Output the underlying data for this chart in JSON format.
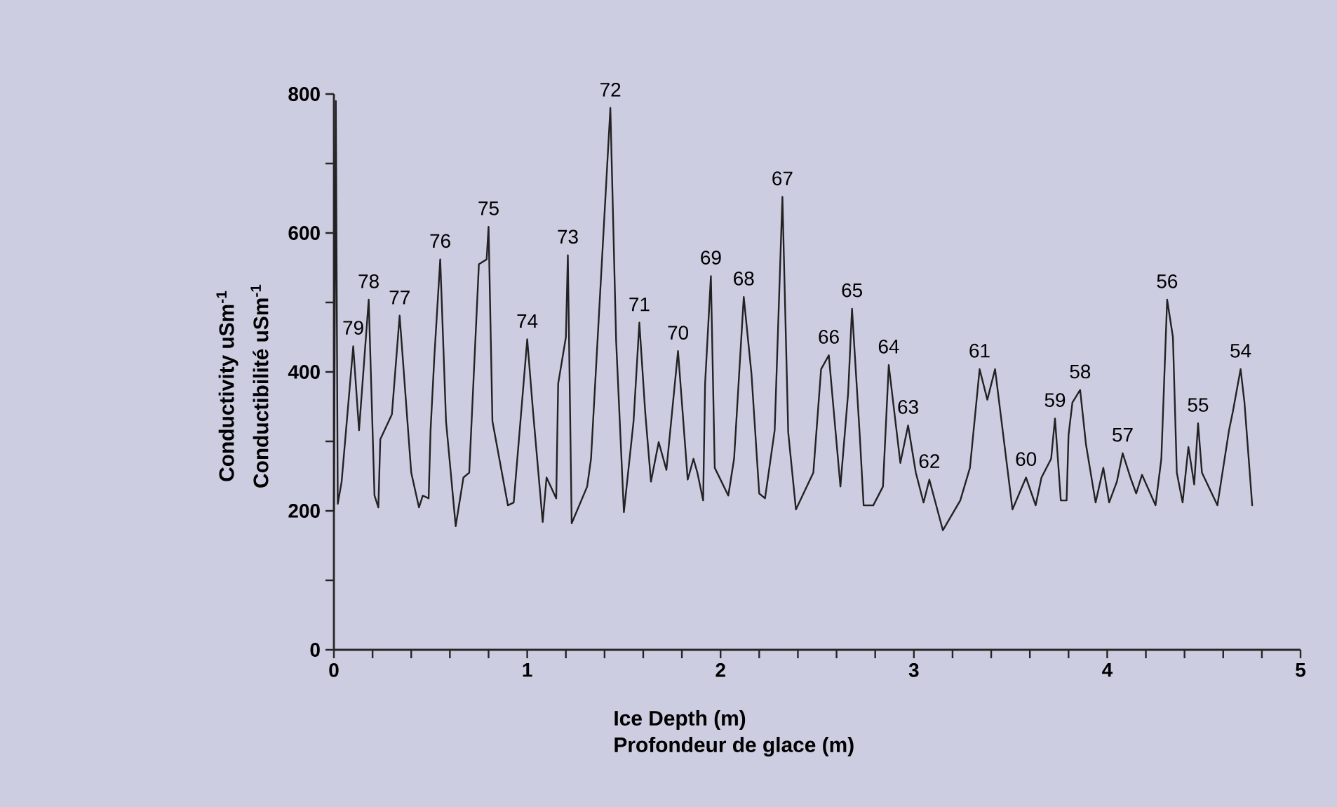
{
  "chart_data": {
    "type": "line",
    "xlabel": "Ice Depth (m)",
    "ylabel": "Conductivity uSm$^{-1}$",
    "x": [
      0,
      0.01,
      0.02,
      0.04,
      0.1,
      0.13,
      0.18,
      0.21,
      0.23,
      0.24,
      0.3,
      0.34,
      0.4,
      0.44,
      0.46,
      0.49,
      0.5,
      0.52,
      0.55,
      0.58,
      0.63,
      0.67,
      0.7,
      0.75,
      0.79,
      0.8,
      0.82,
      0.9,
      0.93,
      1.0,
      1.03,
      1.08,
      1.1,
      1.15,
      1.16,
      1.2,
      1.21,
      1.23,
      1.31,
      1.33,
      1.43,
      1.46,
      1.5,
      1.55,
      1.58,
      1.61,
      1.64,
      1.68,
      1.72,
      1.78,
      1.83,
      1.86,
      1.88,
      1.91,
      1.92,
      1.95,
      1.97,
      2.04,
      2.07,
      2.12,
      2.16,
      2.2,
      2.23,
      2.28,
      2.32,
      2.35,
      2.39,
      2.48,
      2.52,
      2.56,
      2.62,
      2.66,
      2.68,
      2.72,
      2.74,
      2.79,
      2.84,
      2.87,
      2.93,
      2.97,
      3.01,
      3.05,
      3.08,
      3.15,
      3.24,
      3.29,
      3.34,
      3.38,
      3.42,
      3.51,
      3.58,
      3.63,
      3.66,
      3.71,
      3.73,
      3.76,
      3.79,
      3.8,
      3.82,
      3.86,
      3.89,
      3.94,
      3.98,
      4.01,
      4.05,
      4.08,
      4.12,
      4.15,
      4.18,
      4.25,
      4.28,
      4.31,
      4.34,
      4.36,
      4.39,
      4.42,
      4.45,
      4.47,
      4.49,
      4.57,
      4.63,
      4.65,
      4.69,
      4.71,
      4.75
    ],
    "series": [
      {
        "color": "#222222",
        "values": [
          200,
          790,
          210,
          242,
          437,
          316,
          504,
          222,
          205,
          303,
          339,
          481,
          255,
          205,
          222,
          218,
          316,
          424,
          562,
          329,
          178,
          248,
          255,
          555,
          562,
          609,
          329,
          208,
          212,
          447,
          343,
          184,
          248,
          218,
          383,
          450,
          568,
          182,
          235,
          275,
          780,
          444,
          198,
          329,
          471,
          343,
          242,
          299,
          259,
          430,
          245,
          275,
          255,
          215,
          383,
          538,
          262,
          222,
          275,
          508,
          397,
          225,
          218,
          316,
          652,
          313,
          202,
          255,
          404,
          424,
          235,
          370,
          491,
          309,
          208,
          208,
          235,
          410,
          269,
          323,
          255,
          212,
          245,
          172,
          215,
          262,
          404,
          360,
          404,
          202,
          248,
          208,
          248,
          275,
          333,
          215,
          215,
          309,
          356,
          374,
          296,
          212,
          262,
          212,
          242,
          283,
          248,
          225,
          252,
          208,
          275,
          504,
          450,
          255,
          212,
          292,
          238,
          326,
          255,
          208,
          316,
          343,
          404,
          356,
          208
        ]
      }
    ],
    "xlim": [
      0,
      5
    ],
    "ylim": [
      0,
      800
    ],
    "xticks": [
      0,
      {
        "value": 0.2,
        "label": null
      },
      {
        "value": 0.4,
        "label": null
      },
      {
        "value": 0.6,
        "label": null
      },
      {
        "value": 0.8,
        "label": null
      },
      1,
      {
        "value": 1.2,
        "label": null
      },
      {
        "value": 1.4,
        "label": null
      },
      {
        "value": 1.6,
        "label": null
      },
      {
        "value": 1.8,
        "label": null
      },
      2,
      {
        "value": 2.2,
        "label": null
      },
      {
        "value": 2.4,
        "label": null
      },
      {
        "value": 2.6,
        "label": null
      },
      {
        "value": 2.8,
        "label": null
      },
      3,
      {
        "value": 3.2,
        "label": null
      },
      {
        "value": 3.4,
        "label": null
      },
      {
        "value": 3.6,
        "label": null
      },
      {
        "value": 3.8,
        "label": null
      },
      4,
      {
        "value": 4.2,
        "label": null
      },
      {
        "value": 4.4,
        "label": null
      },
      {
        "value": 4.6,
        "label": null
      },
      {
        "value": 4.8,
        "label": null
      },
      5
    ],
    "yticks": [
      0,
      {
        "value": 100,
        "label": null
      },
      200,
      {
        "value": 300,
        "label": null
      },
      400,
      {
        "value": 500,
        "label": null
      },
      600,
      {
        "value": 700,
        "label": null
      },
      800
    ],
    "annotations": [
      "Profondeur de glace (m)",
      "Conductibilité uSm$^{-1}$",
      {
        "text": "79",
        "x": 0.1,
        "y": 437
      },
      {
        "text": "78",
        "x": 0.18,
        "y": 504
      },
      {
        "text": "77",
        "x": 0.34,
        "y": 481
      },
      {
        "text": "76",
        "x": 0.55,
        "y": 562
      },
      {
        "text": "75",
        "x": 0.8,
        "y": 609
      },
      {
        "text": "74",
        "x": 1.0,
        "y": 447
      },
      {
        "text": "73",
        "x": 1.21,
        "y": 568
      },
      {
        "text": "72",
        "x": 1.43,
        "y": 780
      },
      {
        "text": "71",
        "x": 1.58,
        "y": 471
      },
      {
        "text": "70",
        "x": 1.78,
        "y": 430
      },
      {
        "text": "69",
        "x": 1.95,
        "y": 538
      },
      {
        "text": "68",
        "x": 2.12,
        "y": 508
      },
      {
        "text": "67",
        "x": 2.32,
        "y": 652
      },
      {
        "text": "66",
        "x": 2.56,
        "y": 424
      },
      {
        "text": "65",
        "x": 2.68,
        "y": 491
      },
      {
        "text": "64",
        "x": 2.87,
        "y": 410
      },
      {
        "text": "63",
        "x": 2.97,
        "y": 323
      },
      {
        "text": "62",
        "x": 3.08,
        "y": 245
      },
      {
        "text": "61",
        "x": 3.34,
        "y": 404
      },
      {
        "text": "60",
        "x": 3.58,
        "y": 248
      },
      {
        "text": "59",
        "x": 3.73,
        "y": 333
      },
      {
        "text": "58",
        "x": 3.86,
        "y": 374
      },
      {
        "text": "57",
        "x": 4.08,
        "y": 283
      },
      {
        "text": "56",
        "x": 4.31,
        "y": 504
      },
      {
        "text": "55",
        "x": 4.47,
        "y": 326
      },
      {
        "text": "54",
        "x": 4.69,
        "y": 404
      }
    ]
  }
}
